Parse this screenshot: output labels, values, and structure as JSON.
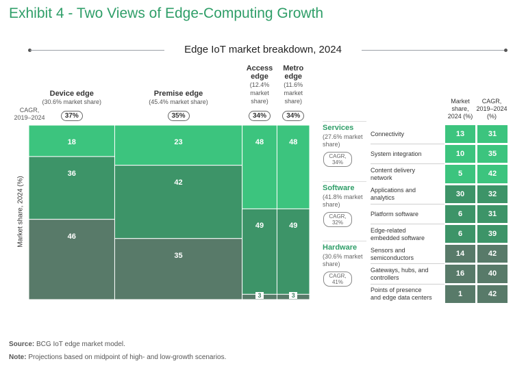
{
  "exhibit_title": "Exhibit 4 - Two Views of Edge-Computing Growth",
  "colors": {
    "title_green": "#2f9e68",
    "services_green": "#3cc47e",
    "software_green": "#3d9468",
    "hardware_green": "#587a69"
  },
  "chart_data": {
    "type": "marimekko",
    "title": "Edge IoT market breakdown, 2024",
    "ylabel": "Market share, 2024 (%)",
    "cagr_axis_label": "CAGR, 2019–2024",
    "columns": [
      {
        "name_lines": [
          "Device edge"
        ],
        "share_text": "(30.6% market share)",
        "market_share": 30.6,
        "cagr": "37%",
        "segments": [
          {
            "category": "Services",
            "value": 18
          },
          {
            "category": "Software",
            "value": 36
          },
          {
            "category": "Hardware",
            "value": 46
          }
        ]
      },
      {
        "name_lines": [
          "Premise edge"
        ],
        "share_text": "(45.4% market share)",
        "market_share": 45.4,
        "cagr": "35%",
        "segments": [
          {
            "category": "Services",
            "value": 23
          },
          {
            "category": "Software",
            "value": 42
          },
          {
            "category": "Hardware",
            "value": 35
          }
        ]
      },
      {
        "name_lines": [
          "Access",
          "edge"
        ],
        "share_lines": [
          "(12.4%",
          "market",
          "share)"
        ],
        "market_share": 12.4,
        "cagr": "34%",
        "segments": [
          {
            "category": "Services",
            "value": 48
          },
          {
            "category": "Software",
            "value": 49
          },
          {
            "category": "Hardware",
            "value": 3
          }
        ]
      },
      {
        "name_lines": [
          "Metro",
          "edge"
        ],
        "share_lines": [
          "(11.6%",
          "market",
          "share)"
        ],
        "market_share": 11.6,
        "cagr": "34%",
        "segments": [
          {
            "category": "Services",
            "value": 48
          },
          {
            "category": "Software",
            "value": 49
          },
          {
            "category": "Hardware",
            "value": 3
          }
        ]
      }
    ],
    "categories": [
      {
        "name": "Services",
        "share_lines": [
          "(27.6% market",
          "share)"
        ],
        "cagr_lines": [
          "CAGR,",
          "34%"
        ],
        "color": "#3cc47e"
      },
      {
        "name": "Software",
        "share_lines": [
          "(41.8% market",
          "share)"
        ],
        "cagr_lines": [
          "CAGR,",
          "32%"
        ],
        "color": "#3d9468"
      },
      {
        "name": "Hardware",
        "share_lines": [
          "(30.6% market",
          "share)"
        ],
        "cagr_lines": [
          "CAGR,",
          "41%"
        ],
        "color": "#587a69"
      }
    ],
    "table": {
      "headers": {
        "market_share": [
          "Market",
          "share,",
          "2024 (%)"
        ],
        "cagr": [
          "CAGR,",
          "2019–2024",
          "(%)"
        ]
      },
      "rows": [
        {
          "category": "Services",
          "label_lines": [
            "Connectivity"
          ],
          "market_share": 13,
          "cagr": 31
        },
        {
          "category": "Services",
          "label_lines": [
            "System integration"
          ],
          "market_share": 10,
          "cagr": 35
        },
        {
          "category": "Services",
          "label_lines": [
            "Content delivery",
            "network"
          ],
          "market_share": 5,
          "cagr": 42
        },
        {
          "category": "Software",
          "label_lines": [
            "Applications and",
            "analytics"
          ],
          "market_share": 30,
          "cagr": 32
        },
        {
          "category": "Software",
          "label_lines": [
            "Platform software"
          ],
          "market_share": 6,
          "cagr": 31
        },
        {
          "category": "Software",
          "label_lines": [
            "Edge-related",
            "embedded software"
          ],
          "market_share": 6,
          "cagr": 39
        },
        {
          "category": "Hardware",
          "label_lines": [
            "Sensors and",
            "semiconductors"
          ],
          "market_share": 14,
          "cagr": 42
        },
        {
          "category": "Hardware",
          "label_lines": [
            "Gateways, hubs, and",
            "controllers"
          ],
          "market_share": 16,
          "cagr": 40
        },
        {
          "category": "Hardware",
          "label_lines": [
            "Points of presence",
            "and edge data centers"
          ],
          "market_share": 1,
          "cagr": 42
        }
      ]
    }
  },
  "footnotes": {
    "source_label": "Source:",
    "source_text": " BCG IoT edge market model.",
    "note_label": "Note:",
    "note_text": " Projections based on midpoint of high- and low-growth scenarios."
  }
}
